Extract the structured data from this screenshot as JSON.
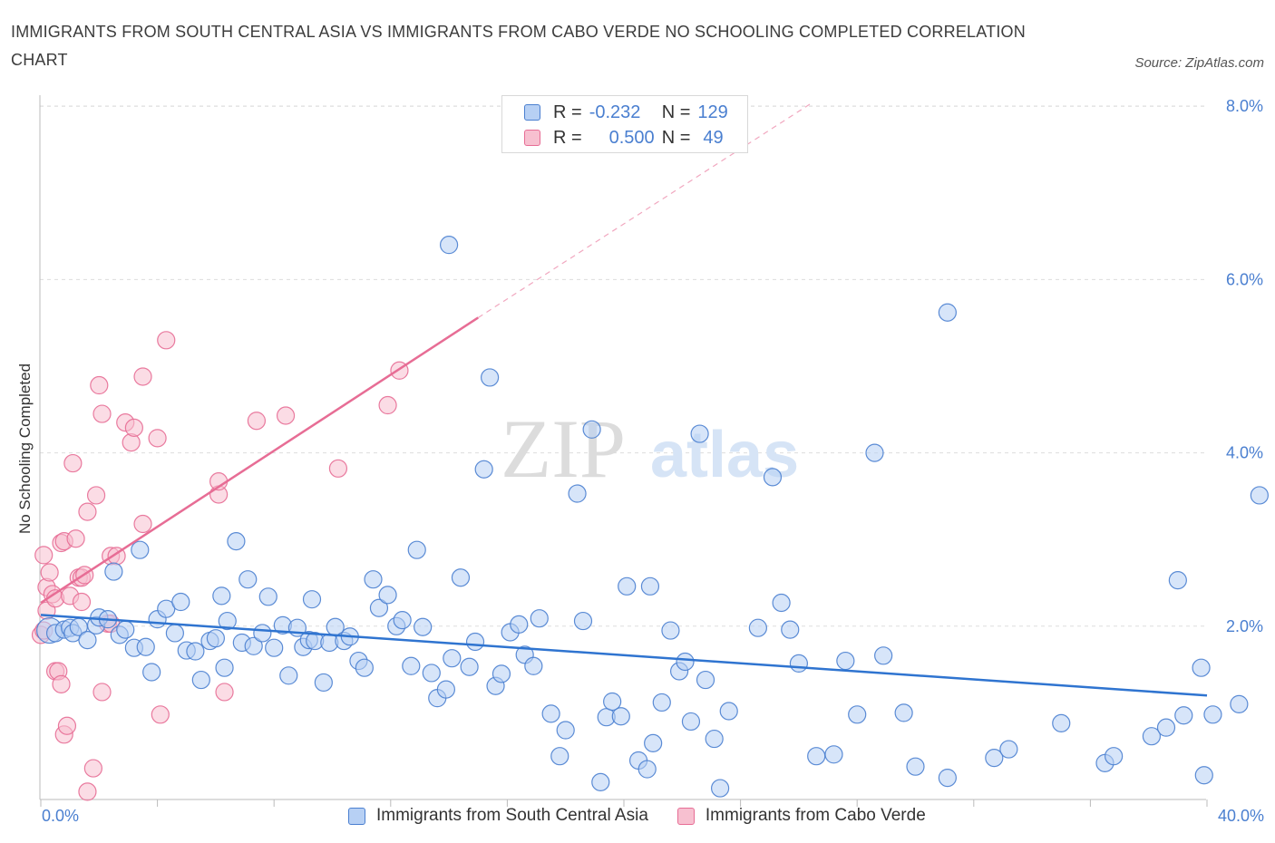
{
  "title": "IMMIGRANTS FROM SOUTH CENTRAL ASIA VS IMMIGRANTS FROM CABO VERDE NO SCHOOLING COMPLETED CORRELATION CHART",
  "source": "Source: ZipAtlas.com",
  "watermark": {
    "zip": "ZIP",
    "atlas": "atlas"
  },
  "colors": {
    "blue": "#4a7fd0",
    "blue_fill": "#b7d0f4",
    "blue_line": "#2f74d0",
    "pink_fill": "#f7c0d0",
    "pink_line": "#e76d95",
    "grid": "#dddddd"
  },
  "legend": {
    "rows": [
      {
        "r_label": "R =",
        "r_value": "-0.232",
        "n_label": "N =",
        "n_value": "129",
        "color": "blue"
      },
      {
        "r_label": "R =",
        "r_value": "0.500",
        "n_label": "N =",
        "n_value": "49",
        "color": "pink"
      }
    ]
  },
  "bottom_legend": {
    "series1": "Immigrants from South Central Asia",
    "series2": "Immigrants from Cabo Verde"
  },
  "axis": {
    "x_min_label": "0.0%",
    "x_max_label": "40.0%",
    "y_label": "No Schooling Completed",
    "y_ticks": [
      "2.0%",
      "4.0%",
      "6.0%",
      "8.0%"
    ]
  },
  "chart_data": {
    "type": "scatter",
    "xlabel": "",
    "ylabel": "No Schooling Completed",
    "xlim": [
      0,
      40
    ],
    "ylim": [
      0,
      8
    ],
    "y_ticks": [
      2,
      4,
      6,
      8
    ],
    "grid": true,
    "legend_position": "top-center",
    "series": [
      {
        "name": "Immigrants from South Central Asia",
        "color": "blue",
        "r": -0.232,
        "n": 129,
        "trend": {
          "x": [
            0,
            40
          ],
          "y": [
            2.13,
            1.2
          ]
        },
        "points": [
          [
            0.3,
            1.95
          ],
          [
            0.5,
            1.92
          ],
          [
            0.8,
            1.96
          ],
          [
            1.0,
            1.98
          ],
          [
            1.1,
            1.92
          ],
          [
            1.3,
            1.99
          ],
          [
            1.6,
            1.84
          ],
          [
            1.9,
            2.01
          ],
          [
            2.0,
            2.1
          ],
          [
            2.3,
            2.08
          ],
          [
            2.5,
            2.63
          ],
          [
            2.7,
            1.9
          ],
          [
            2.9,
            1.96
          ],
          [
            3.2,
            1.75
          ],
          [
            3.4,
            2.88
          ],
          [
            3.6,
            1.76
          ],
          [
            3.8,
            1.47
          ],
          [
            4.0,
            2.08
          ],
          [
            4.3,
            2.2
          ],
          [
            4.6,
            1.92
          ],
          [
            4.8,
            2.28
          ],
          [
            5.0,
            1.72
          ],
          [
            5.3,
            1.71
          ],
          [
            5.5,
            1.38
          ],
          [
            5.8,
            1.83
          ],
          [
            6.0,
            1.86
          ],
          [
            6.2,
            2.35
          ],
          [
            6.4,
            2.06
          ],
          [
            6.7,
            2.98
          ],
          [
            6.9,
            1.81
          ],
          [
            7.1,
            2.54
          ],
          [
            7.3,
            1.77
          ],
          [
            7.6,
            1.92
          ],
          [
            7.8,
            2.34
          ],
          [
            8.0,
            1.75
          ],
          [
            8.3,
            2.01
          ],
          [
            8.5,
            1.43
          ],
          [
            8.8,
            1.98
          ],
          [
            9.0,
            1.76
          ],
          [
            9.2,
            1.84
          ],
          [
            9.4,
            1.83
          ],
          [
            9.7,
            1.35
          ],
          [
            9.9,
            1.81
          ],
          [
            10.1,
            1.99
          ],
          [
            10.4,
            1.83
          ],
          [
            10.6,
            1.88
          ],
          [
            10.9,
            1.6
          ],
          [
            11.1,
            1.52
          ],
          [
            11.4,
            2.54
          ],
          [
            11.6,
            2.21
          ],
          [
            11.9,
            2.36
          ],
          [
            12.2,
            2.0
          ],
          [
            12.4,
            2.07
          ],
          [
            12.7,
            1.54
          ],
          [
            12.9,
            2.88
          ],
          [
            13.1,
            1.99
          ],
          [
            13.4,
            1.46
          ],
          [
            13.6,
            1.17
          ],
          [
            13.9,
            1.27
          ],
          [
            14.1,
            1.63
          ],
          [
            14.4,
            2.56
          ],
          [
            14.7,
            1.53
          ],
          [
            14.9,
            1.82
          ],
          [
            15.2,
            3.81
          ],
          [
            15.4,
            4.87
          ],
          [
            15.6,
            1.31
          ],
          [
            15.8,
            1.45
          ],
          [
            16.1,
            1.93
          ],
          [
            16.4,
            2.02
          ],
          [
            16.6,
            1.67
          ],
          [
            16.9,
            1.54
          ],
          [
            17.1,
            2.09
          ],
          [
            17.5,
            0.99
          ],
          [
            17.8,
            0.5
          ],
          [
            18.0,
            0.8
          ],
          [
            18.4,
            3.53
          ],
          [
            18.6,
            2.06
          ],
          [
            18.9,
            4.27
          ],
          [
            19.2,
            0.2
          ],
          [
            19.4,
            0.95
          ],
          [
            19.6,
            1.13
          ],
          [
            19.9,
            0.96
          ],
          [
            20.1,
            2.46
          ],
          [
            20.5,
            0.45
          ],
          [
            20.8,
            0.35
          ],
          [
            21.0,
            0.65
          ],
          [
            21.3,
            1.12
          ],
          [
            21.6,
            1.95
          ],
          [
            21.9,
            1.48
          ],
          [
            22.1,
            1.59
          ],
          [
            22.3,
            0.9
          ],
          [
            22.6,
            4.22
          ],
          [
            22.8,
            1.38
          ],
          [
            23.1,
            0.7
          ],
          [
            23.3,
            0.13
          ],
          [
            23.6,
            1.02
          ],
          [
            24.6,
            1.98
          ],
          [
            25.1,
            3.72
          ],
          [
            25.4,
            2.27
          ],
          [
            25.7,
            1.96
          ],
          [
            26.0,
            1.57
          ],
          [
            26.6,
            0.5
          ],
          [
            27.2,
            0.52
          ],
          [
            27.6,
            1.6
          ],
          [
            28.0,
            0.98
          ],
          [
            28.6,
            4.0
          ],
          [
            28.9,
            1.66
          ],
          [
            29.6,
            1.0
          ],
          [
            30.0,
            0.38
          ],
          [
            31.1,
            0.25
          ],
          [
            31.1,
            5.62
          ],
          [
            32.7,
            0.48
          ],
          [
            33.2,
            0.58
          ],
          [
            35.0,
            0.88
          ],
          [
            36.5,
            0.42
          ],
          [
            36.8,
            0.5
          ],
          [
            38.1,
            0.73
          ],
          [
            38.6,
            0.83
          ],
          [
            39.0,
            2.53
          ],
          [
            39.2,
            0.97
          ],
          [
            39.8,
            1.52
          ],
          [
            39.9,
            0.28
          ],
          [
            40.2,
            0.98
          ],
          [
            41.1,
            1.1
          ],
          [
            41.8,
            3.51
          ],
          [
            20.9,
            2.46
          ],
          [
            9.3,
            2.31
          ],
          [
            14.0,
            6.4
          ],
          [
            6.3,
            1.52
          ]
        ]
      },
      {
        "name": "Immigrants from Cabo Verde",
        "color": "pink",
        "r": 0.5,
        "n": 49,
        "trend": {
          "x": [
            0,
            15
          ],
          "y": [
            2.27,
            5.56
          ]
        },
        "trend_dashed": {
          "x": [
            15,
            26.5
          ],
          "y": [
            5.56,
            8.05
          ]
        },
        "points": [
          [
            0.0,
            1.9
          ],
          [
            0.1,
            2.82
          ],
          [
            0.2,
            2.18
          ],
          [
            0.2,
            2.45
          ],
          [
            0.3,
            2.62
          ],
          [
            0.4,
            2.37
          ],
          [
            0.5,
            1.48
          ],
          [
            0.5,
            2.32
          ],
          [
            0.6,
            1.48
          ],
          [
            0.7,
            1.33
          ],
          [
            0.7,
            2.96
          ],
          [
            0.8,
            0.75
          ],
          [
            0.8,
            2.98
          ],
          [
            0.9,
            0.85
          ],
          [
            1.0,
            2.35
          ],
          [
            1.1,
            3.88
          ],
          [
            1.2,
            3.01
          ],
          [
            1.3,
            2.56
          ],
          [
            1.4,
            2.56
          ],
          [
            1.4,
            2.28
          ],
          [
            1.5,
            2.59
          ],
          [
            1.6,
            3.32
          ],
          [
            1.6,
            0.09
          ],
          [
            1.8,
            0.36
          ],
          [
            1.9,
            3.51
          ],
          [
            2.0,
            4.78
          ],
          [
            2.1,
            4.45
          ],
          [
            2.1,
            1.24
          ],
          [
            2.3,
            2.03
          ],
          [
            2.4,
            2.03
          ],
          [
            2.4,
            2.81
          ],
          [
            2.6,
            2.81
          ],
          [
            2.9,
            4.35
          ],
          [
            3.1,
            4.12
          ],
          [
            3.2,
            4.29
          ],
          [
            3.5,
            3.18
          ],
          [
            3.5,
            4.88
          ],
          [
            4.0,
            4.17
          ],
          [
            4.1,
            0.98
          ],
          [
            4.3,
            5.3
          ],
          [
            6.1,
            3.52
          ],
          [
            6.1,
            3.67
          ],
          [
            6.3,
            1.24
          ],
          [
            7.4,
            4.37
          ],
          [
            8.4,
            4.43
          ],
          [
            10.2,
            3.82
          ],
          [
            11.9,
            4.55
          ],
          [
            12.3,
            4.95
          ],
          [
            0.1,
            1.95
          ]
        ]
      }
    ]
  }
}
